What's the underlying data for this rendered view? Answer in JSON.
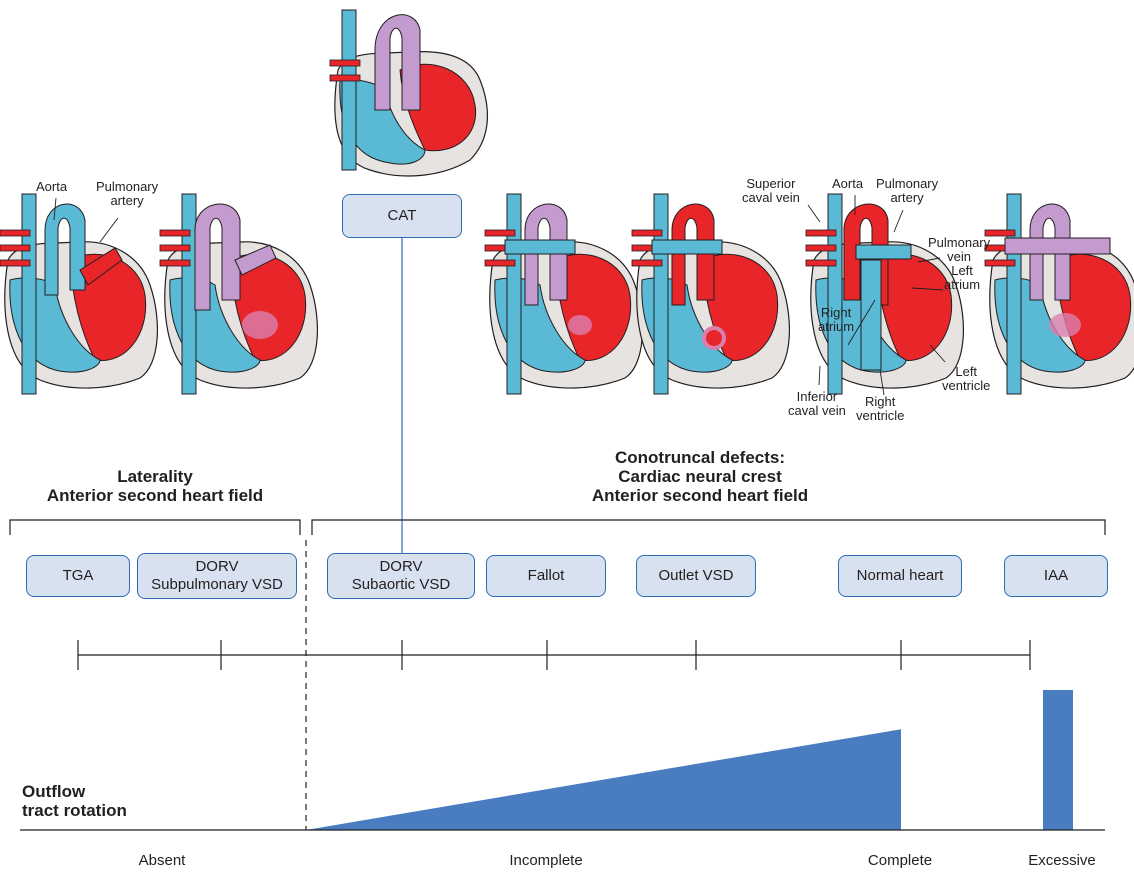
{
  "labels": {
    "aorta_left": "Aorta",
    "pulmonary_artery_left": "Pulmonary\nartery",
    "superior_caval_vein": "Superior\ncaval vein",
    "aorta_right": "Aorta",
    "pulmonary_artery_right": "Pulmonary\nartery",
    "pulmonary_vein": "Pulmonary\nvein",
    "left_atrium": "Left\natrium",
    "right_atrium": "Right\natrium",
    "left_ventricle": "Left\nventricle",
    "inferior_caval_vein": "Inferior\ncaval vein",
    "right_ventricle": "Right\nventricle"
  },
  "groups": {
    "laterality": {
      "line1": "Laterality",
      "line2": "Anterior second heart field"
    },
    "conotruncal": {
      "line1": "Conotruncal defects:",
      "line2": "Cardiac neural crest",
      "line3": "Anterior second heart field"
    }
  },
  "defects": {
    "cat": "CAT",
    "tga": "TGA",
    "dorv_sp_1": "DORV",
    "dorv_sp_2": "Subpulmonary VSD",
    "dorv_sa_1": "DORV",
    "dorv_sa_2": "Subaortic VSD",
    "fallot": "Fallot",
    "outlet_vsd": "Outlet VSD",
    "normal_heart": "Normal heart",
    "iaa": "IAA"
  },
  "rotation": {
    "title_line1": "Outflow",
    "title_line2": "tract rotation",
    "absent": "Absent",
    "incomplete": "Incomplete",
    "complete": "Complete",
    "excessive": "Excessive",
    "incomplete_level_at_complete": 0.72,
    "excessive_level": 1.0
  },
  "colors": {
    "deoxygenated": "#5ab9d5",
    "oxygenated": "#e8262a",
    "mixed": "#c39bcf",
    "wall": "#e6e3e1",
    "box_fill": "#d8e1ef",
    "box_border": "#2e6db3",
    "rotation_fill": "#4a7cc0"
  }
}
